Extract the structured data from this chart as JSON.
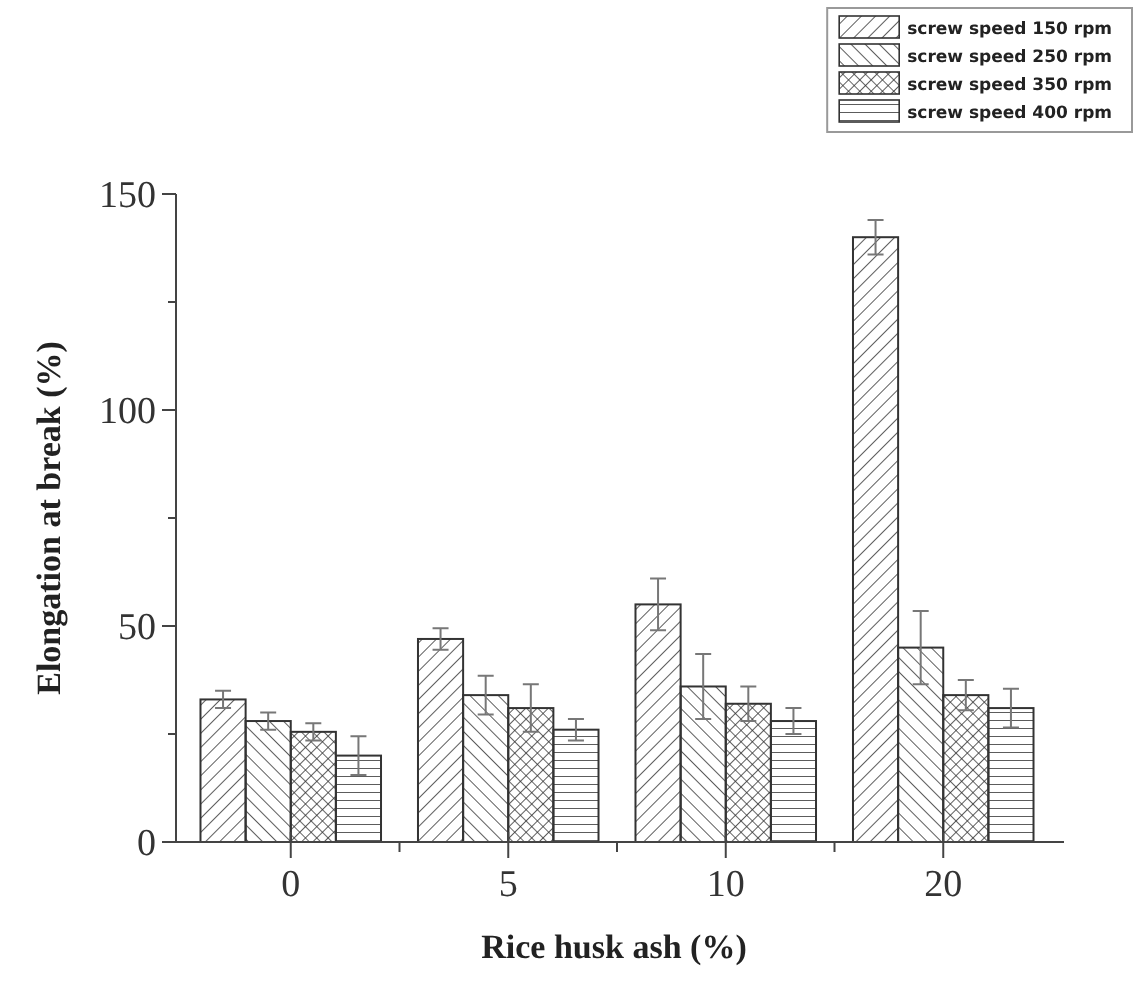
{
  "chart_data": {
    "type": "bar",
    "xlabel": "Rice husk ash (%)",
    "ylabel": "Elongation at break (%)",
    "categories": [
      "0",
      "5",
      "10",
      "20"
    ],
    "series": [
      {
        "name": "screw speed 150 rpm",
        "color": "#333333",
        "values": [
          33,
          47,
          55,
          140
        ],
        "errors": [
          2,
          2.5,
          6,
          4
        ]
      },
      {
        "name": "screw speed 250 rpm",
        "color": "#333333",
        "values": [
          28,
          34,
          36,
          45
        ],
        "errors": [
          2,
          4.5,
          7.5,
          8.5
        ]
      },
      {
        "name": "screw speed 350 rpm",
        "color": "#333333",
        "values": [
          25.5,
          31,
          32,
          34
        ],
        "errors": [
          2,
          5.5,
          4,
          3.5
        ]
      },
      {
        "name": "screw speed 400 rpm",
        "color": "#333333",
        "values": [
          20,
          26,
          28,
          31
        ],
        "errors": [
          4.5,
          2.5,
          3,
          4.5
        ]
      }
    ],
    "ylim": [
      0,
      150
    ],
    "yticks": [
      0,
      {
        "value": 25,
        "label": null
      },
      50,
      {
        "value": 75,
        "label": null
      },
      100,
      {
        "value": 125,
        "label": null
      },
      150
    ],
    "grid": false,
    "legend": "top right"
  }
}
